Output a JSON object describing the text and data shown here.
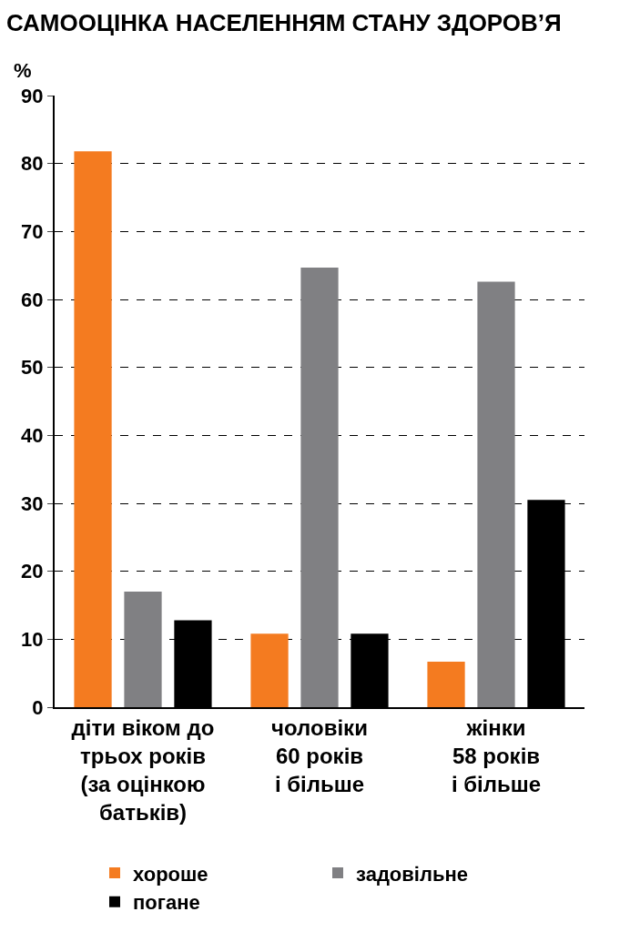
{
  "chart_data": {
    "type": "bar",
    "title": "САМООЦІНКА НАСЕЛЕННЯМ СТАНУ ЗДОРОВ’Я",
    "ylabel": "%",
    "categories": [
      "діти віком до\nтрьох років\n(за оцінкою\nбатьків)",
      "чоловіки\n60 років\nі більше",
      "жінки\n58 років\nі більше"
    ],
    "series": [
      {
        "name": "хороше",
        "color": "#f47b20",
        "values": [
          81.8,
          10.8,
          6.7
        ]
      },
      {
        "name": "задовільне",
        "color": "#808083",
        "values": [
          17.0,
          64.7,
          62.6
        ]
      },
      {
        "name": "погане",
        "color": "#000000",
        "values": [
          12.8,
          10.8,
          30.5
        ]
      }
    ],
    "ylim": [
      0,
      90
    ],
    "yticks": [
      0,
      10,
      20,
      30,
      40,
      50,
      60,
      70,
      80,
      90
    ],
    "grid": "y",
    "legend": "bottom"
  }
}
